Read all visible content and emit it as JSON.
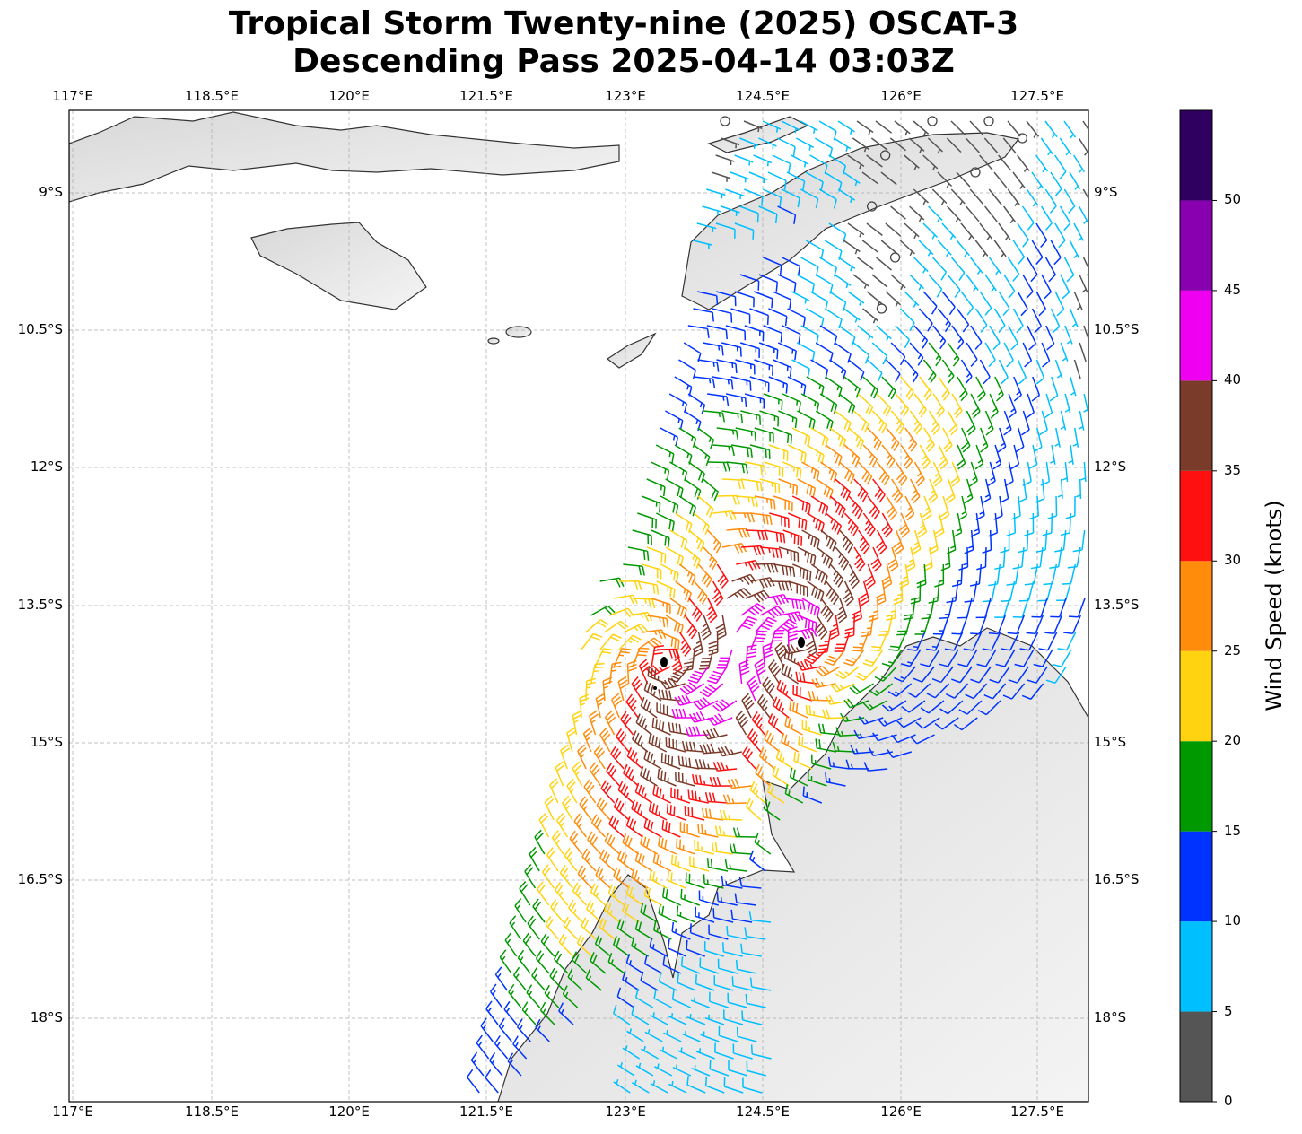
{
  "title": {
    "line1": "Tropical Storm Twenty-nine (2025) OSCAT-3",
    "line2": "Descending Pass 2025-04-14 03:03Z"
  },
  "lon_ticks": [
    "117°E",
    "118.5°E",
    "120°E",
    "121.5°E",
    "123°E",
    "124.5°E",
    "126°E",
    "127.5°E"
  ],
  "lat_ticks": [
    "9°S",
    "10.5°S",
    "12°S",
    "13.5°S",
    "15°S",
    "16.5°S",
    "18°S"
  ],
  "colorbar": {
    "label": "Wind Speed (knots)",
    "ticks": [
      "0",
      "5",
      "10",
      "15",
      "20",
      "25",
      "30",
      "35",
      "40",
      "45",
      "50"
    ],
    "bins": [
      {
        "min": 0,
        "max": 5,
        "color": "#555555"
      },
      {
        "min": 5,
        "max": 10,
        "color": "#00bfff"
      },
      {
        "min": 10,
        "max": 15,
        "color": "#0033ff"
      },
      {
        "min": 15,
        "max": 20,
        "color": "#009900"
      },
      {
        "min": 20,
        "max": 25,
        "color": "#ffd30f"
      },
      {
        "min": 25,
        "max": 30,
        "color": "#ff8c0a"
      },
      {
        "min": 30,
        "max": 35,
        "color": "#ff1010"
      },
      {
        "min": 35,
        "max": 40,
        "color": "#7b3b2a"
      },
      {
        "min": 40,
        "max": 45,
        "color": "#f000f0"
      },
      {
        "min": 45,
        "max": 50,
        "color": "#8800b0"
      },
      {
        "min": 50,
        "max": 55,
        "color": "#300060"
      }
    ]
  }
}
